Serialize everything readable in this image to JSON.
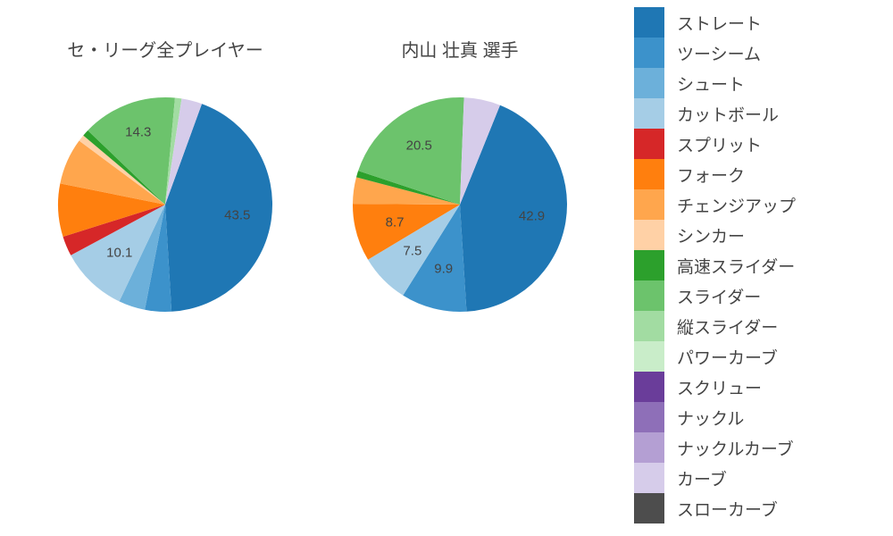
{
  "background_color": "#ffffff",
  "font_color": "#444444",
  "legend": {
    "swatch_size": 34,
    "label_fontsize": 19,
    "items": [
      {
        "label": "ストレート",
        "color": "#1f77b4"
      },
      {
        "label": "ツーシーム",
        "color": "#3c92cb"
      },
      {
        "label": "シュート",
        "color": "#6cb0da"
      },
      {
        "label": "カットボール",
        "color": "#a5cde6"
      },
      {
        "label": "スプリット",
        "color": "#d62728"
      },
      {
        "label": "フォーク",
        "color": "#ff7f0e"
      },
      {
        "label": "チェンジアップ",
        "color": "#ffa64d"
      },
      {
        "label": "シンカー",
        "color": "#ffd1a6"
      },
      {
        "label": "高速スライダー",
        "color": "#2ca02c"
      },
      {
        "label": "スライダー",
        "color": "#6cc36c"
      },
      {
        "label": "縦スライダー",
        "color": "#a2dca2"
      },
      {
        "label": "パワーカーブ",
        "color": "#c9edc9"
      },
      {
        "label": "スクリュー",
        "color": "#6a3d9a"
      },
      {
        "label": "ナックル",
        "color": "#8e6fb8"
      },
      {
        "label": "ナックルカーブ",
        "color": "#b49fd3"
      },
      {
        "label": "カーブ",
        "color": "#d6ccea"
      },
      {
        "label": "スローカーブ",
        "color": "#4d4d4d"
      }
    ]
  },
  "pies": [
    {
      "title": "セ・リーグ全プレイヤー",
      "start_angle": 70,
      "direction": "clockwise",
      "radius": 120,
      "slices": [
        {
          "pitch": "ストレート",
          "value": 43.5,
          "color": "#1f77b4",
          "show_label": true,
          "label_r": 0.68
        },
        {
          "pitch": "ツーシーム",
          "value": 4.0,
          "color": "#3c92cb",
          "show_label": false,
          "label_r": 0.72
        },
        {
          "pitch": "シュート",
          "value": 4.0,
          "color": "#6cb0da",
          "show_label": false,
          "label_r": 0.72
        },
        {
          "pitch": "カットボール",
          "value": 10.1,
          "color": "#a5cde6",
          "show_label": true,
          "label_r": 0.62
        },
        {
          "pitch": "スプリット",
          "value": 3.0,
          "color": "#d62728",
          "show_label": false,
          "label_r": 0.72
        },
        {
          "pitch": "フォーク",
          "value": 8.0,
          "color": "#ff7f0e",
          "show_label": false,
          "label_r": 0.72
        },
        {
          "pitch": "チェンジアップ",
          "value": 7.0,
          "color": "#ffa64d",
          "show_label": false,
          "label_r": 0.72
        },
        {
          "pitch": "シンカー",
          "value": 1.0,
          "color": "#ffd1a6",
          "show_label": false,
          "label_r": 0.72
        },
        {
          "pitch": "高速スライダー",
          "value": 1.0,
          "color": "#2ca02c",
          "show_label": false,
          "label_r": 0.72
        },
        {
          "pitch": "スライダー",
          "value": 14.3,
          "color": "#6cc36c",
          "show_label": true,
          "label_r": 0.72
        },
        {
          "pitch": "縦スライダー",
          "value": 1.0,
          "color": "#a2dca2",
          "show_label": false,
          "label_r": 0.72
        },
        {
          "pitch": "カーブ",
          "value": 3.1,
          "color": "#d6ccea",
          "show_label": false,
          "label_r": 0.72
        }
      ]
    },
    {
      "title": "内山 壮真  選手",
      "start_angle": 68,
      "direction": "clockwise",
      "radius": 120,
      "slices": [
        {
          "pitch": "ストレート",
          "value": 42.9,
          "color": "#1f77b4",
          "show_label": true,
          "label_r": 0.68
        },
        {
          "pitch": "ツーシーム",
          "value": 9.9,
          "color": "#3c92cb",
          "show_label": true,
          "label_r": 0.62
        },
        {
          "pitch": "カットボール",
          "value": 7.5,
          "color": "#a5cde6",
          "show_label": true,
          "label_r": 0.62
        },
        {
          "pitch": "フォーク",
          "value": 8.7,
          "color": "#ff7f0e",
          "show_label": true,
          "label_r": 0.63
        },
        {
          "pitch": "チェンジアップ",
          "value": 4.0,
          "color": "#ffa64d",
          "show_label": false,
          "label_r": 0.72
        },
        {
          "pitch": "高速スライダー",
          "value": 1.0,
          "color": "#2ca02c",
          "show_label": false,
          "label_r": 0.72
        },
        {
          "pitch": "スライダー",
          "value": 20.5,
          "color": "#6cc36c",
          "show_label": true,
          "label_r": 0.67
        },
        {
          "pitch": "カーブ",
          "value": 5.5,
          "color": "#d6ccea",
          "show_label": false,
          "label_r": 0.72
        }
      ]
    }
  ]
}
